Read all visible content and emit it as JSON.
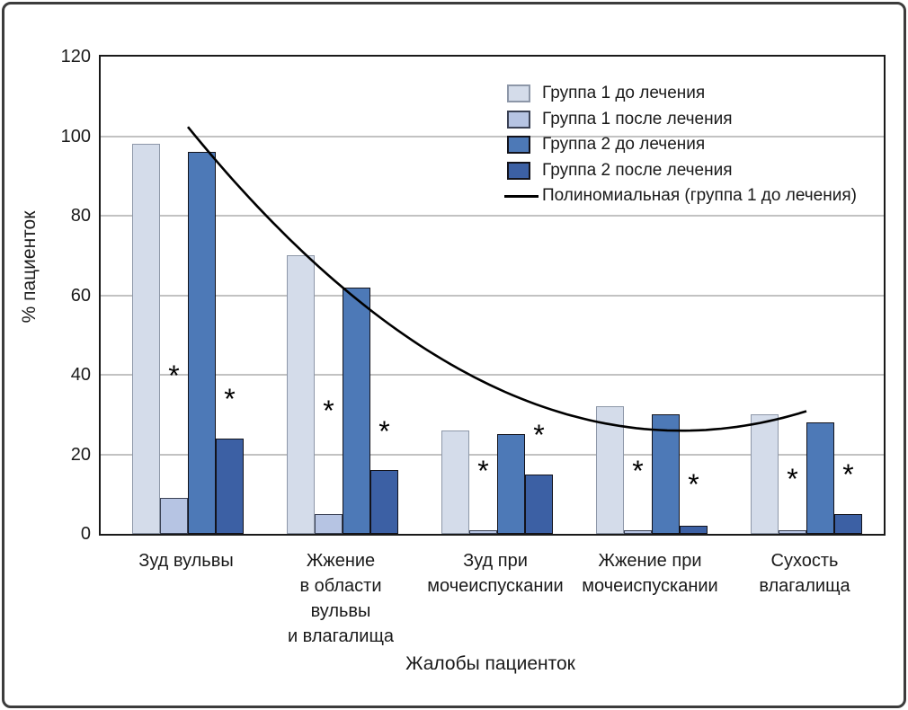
{
  "chart_data": {
    "type": "bar",
    "title": "",
    "xlabel": "Жалобы пациенток",
    "ylabel": "% пациенток",
    "ylim": [
      0,
      120
    ],
    "y_ticks": [
      0,
      20,
      40,
      60,
      80,
      100,
      120
    ],
    "grid": "horizontal-light-gray",
    "legend_position": "top-right-inside",
    "categories": [
      {
        "label": "Зуд вульвы",
        "lines": [
          "Зуд вульвы"
        ]
      },
      {
        "label": "Жжение в области вульвы и влагалища",
        "lines": [
          "Жжение",
          "в области",
          "вульвы",
          "и влагалища"
        ]
      },
      {
        "label": "Зуд при мочеиспускании",
        "lines": [
          "Зуд при",
          "мочеиспускании"
        ]
      },
      {
        "label": "Жжение при мочеиспускании",
        "lines": [
          "Жжение при",
          "мочеиспускании"
        ]
      },
      {
        "label": "Сухость влагалища",
        "lines": [
          "Сухость",
          "влагалища"
        ]
      }
    ],
    "series": [
      {
        "name": "Группа 1 до лечения",
        "values": [
          98,
          70,
          26,
          32,
          30
        ],
        "fill": "#d4dcea",
        "border": "#8d97a8"
      },
      {
        "name": "Группа 1 после лечения",
        "values": [
          9,
          5,
          1,
          1,
          1
        ],
        "fill": "#b6c4e3",
        "border": "#3a4154"
      },
      {
        "name": "Группа 2 до лечения",
        "values": [
          96,
          62,
          25,
          30,
          28
        ],
        "fill": "#4d79b7",
        "border": "#13131b"
      },
      {
        "name": "Группа 2 после лечения",
        "values": [
          24,
          16,
          15,
          2,
          5
        ],
        "fill": "#3c60a4",
        "border": "#13131b"
      }
    ],
    "trendline": {
      "name": "Полиномиальная (группа 1 до лечения)",
      "based_on_series": "Группа 1 до лечения",
      "type": "polynomial-degree-2",
      "poly": {
        "a": 7.5,
        "b": -62.87,
        "c": 157.7
      },
      "t_domain": [
        1.0,
        5.0
      ],
      "color": "#000000"
    },
    "significance_markers": {
      "symbol": "*",
      "per_category": [
        {
          "series_indexes": [
            1,
            3
          ],
          "y_values": [
            41,
            35
          ]
        },
        {
          "series_indexes": [
            1,
            3
          ],
          "y_values": [
            32,
            27
          ]
        },
        {
          "series_indexes": [
            1,
            3
          ],
          "y_values": [
            17,
            26
          ]
        },
        {
          "series_indexes": [
            1,
            3
          ],
          "y_values": [
            17,
            13.5
          ]
        },
        {
          "series_indexes": [
            1,
            3
          ],
          "y_values": [
            15,
            16
          ]
        }
      ]
    }
  },
  "colors": {
    "gridline": "#c2c2c2",
    "plot_border": "#1a1a1a",
    "frame_border": "#3c3c3c",
    "text": "#1a1a1a"
  }
}
